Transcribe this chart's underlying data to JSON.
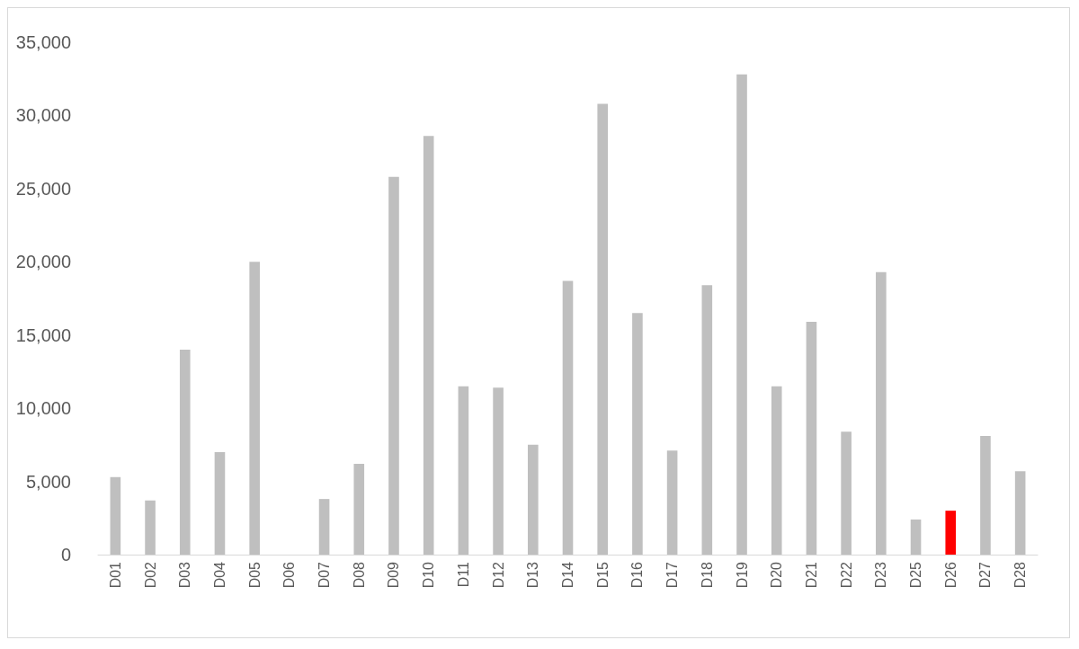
{
  "chart_data": {
    "type": "bar",
    "categories": [
      "D01",
      "D02",
      "D03",
      "D04",
      "D05",
      "D06",
      "D07",
      "D08",
      "D09",
      "D10",
      "D11",
      "D12",
      "D13",
      "D14",
      "D15",
      "D16",
      "D17",
      "D18",
      "D19",
      "D20",
      "D21",
      "D22",
      "D23",
      "D25",
      "D26",
      "D27",
      "D28"
    ],
    "values": [
      5300,
      3700,
      14000,
      7000,
      20000,
      0,
      3800,
      6200,
      25800,
      28600,
      11500,
      11400,
      7500,
      18700,
      30800,
      16500,
      7100,
      18400,
      32800,
      11500,
      15900,
      8400,
      19300,
      2400,
      3000,
      8100,
      5700
    ],
    "colors": [
      "#bfbfbf",
      "#bfbfbf",
      "#bfbfbf",
      "#bfbfbf",
      "#bfbfbf",
      "#bfbfbf",
      "#bfbfbf",
      "#bfbfbf",
      "#bfbfbf",
      "#bfbfbf",
      "#bfbfbf",
      "#bfbfbf",
      "#bfbfbf",
      "#bfbfbf",
      "#bfbfbf",
      "#bfbfbf",
      "#bfbfbf",
      "#bfbfbf",
      "#bfbfbf",
      "#bfbfbf",
      "#bfbfbf",
      "#bfbfbf",
      "#bfbfbf",
      "#bfbfbf",
      "#ff0000",
      "#bfbfbf",
      "#bfbfbf"
    ],
    "ylim": [
      0,
      35000
    ],
    "yticks": [
      0,
      {
        "value": 5000,
        "label": "5,000"
      },
      {
        "value": 10000,
        "label": "10,000"
      },
      {
        "value": 15000,
        "label": "15,000"
      },
      {
        "value": 20000,
        "label": "20,000"
      },
      {
        "value": 25000,
        "label": "25,000"
      },
      {
        "value": 30000,
        "label": "30,000"
      },
      {
        "value": 35000,
        "label": "35,000"
      }
    ],
    "grid": false
  }
}
